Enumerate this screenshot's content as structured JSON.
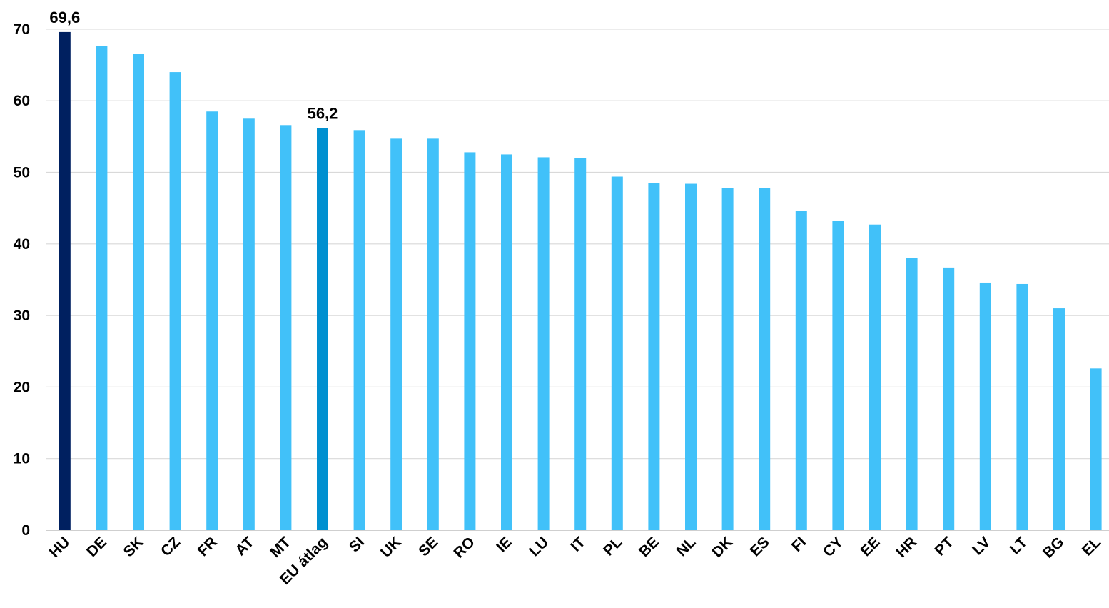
{
  "chart_data": {
    "type": "bar",
    "title": "",
    "xlabel": "",
    "ylabel": "",
    "ylim": [
      0,
      70
    ],
    "yticks": [
      0,
      10,
      20,
      30,
      40,
      50,
      60,
      70
    ],
    "grid": true,
    "categories": [
      "HU",
      "DE",
      "SK",
      "CZ",
      "FR",
      "AT",
      "MT",
      "EU átlag",
      "SI",
      "UK",
      "SE",
      "RO",
      "IE",
      "LU",
      "IT",
      "PL",
      "BE",
      "NL",
      "DK",
      "ES",
      "FI",
      "CY",
      "EE",
      "HR",
      "PT",
      "LV",
      "LT",
      "BG",
      "EL"
    ],
    "values": [
      69.6,
      67.6,
      66.5,
      64.0,
      58.5,
      57.5,
      56.6,
      56.2,
      55.9,
      54.7,
      54.7,
      52.8,
      52.5,
      52.1,
      52.0,
      49.4,
      48.5,
      48.4,
      47.8,
      47.8,
      44.6,
      43.2,
      42.7,
      38.0,
      36.7,
      34.6,
      34.4,
      31.0,
      22.6
    ],
    "data_labels": [
      {
        "category": "HU",
        "text": "69,6"
      },
      {
        "category": "EU átlag",
        "text": "56,2"
      }
    ],
    "colors": {
      "default": "#41c1f9",
      "highlight": "#002060",
      "average": "#0090d0",
      "grid": "#d9d9d9",
      "axis": "#bfbfbf"
    },
    "highlight_categories": [
      "HU"
    ],
    "average_categories": [
      "EU átlag"
    ]
  }
}
